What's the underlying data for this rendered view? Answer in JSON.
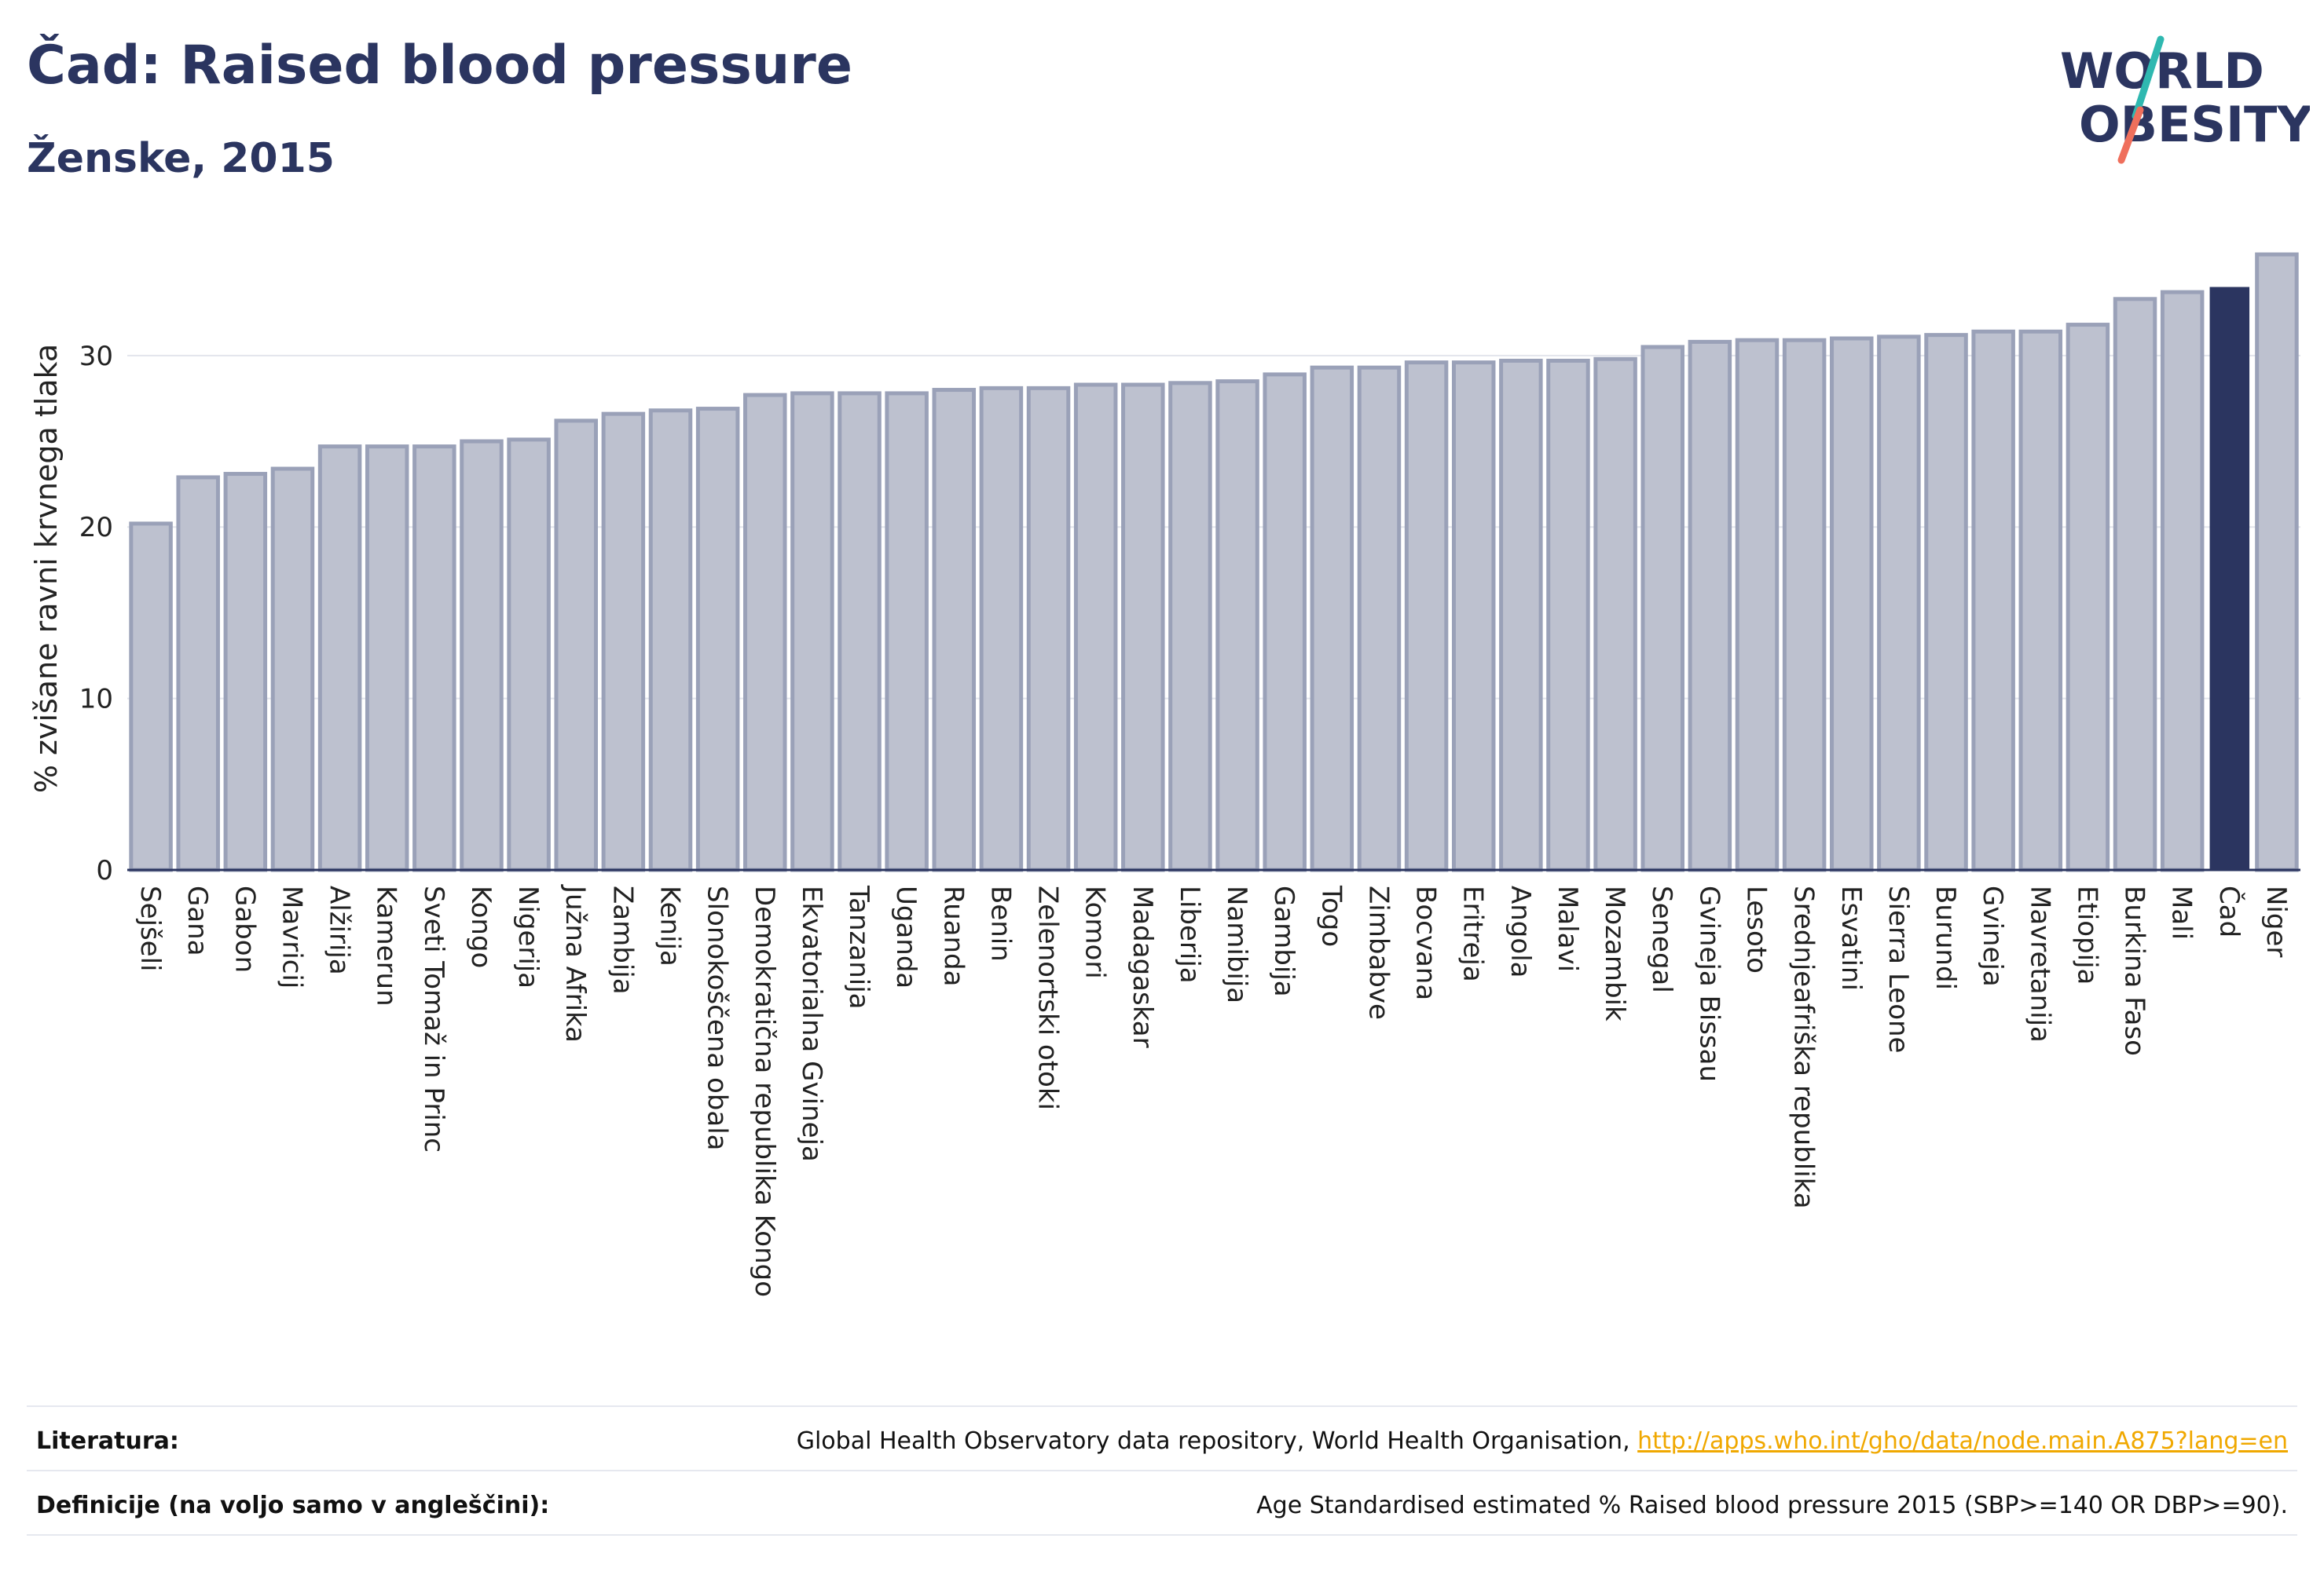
{
  "title": "Čad: Raised blood pressure",
  "subtitle": "Ženske, 2015",
  "logo": {
    "line1": "WORLD",
    "line2": "OBESITY"
  },
  "footer": {
    "literature_label": "Literatura:",
    "literature_text": "Global Health Observatory data repository, World Health Organisation, ",
    "literature_link": "http://apps.who.int/gho/data/node.main.A875?lang=en",
    "definitions_label": "Definicije (na voljo samo v angleščini):",
    "definitions_text": "Age Standardised estimated % Raised blood pressure 2015 (SBP>=140 OR DBP>=90)."
  },
  "colors": {
    "bar": "#bdc1cf",
    "bar_border": "#9aa1b8",
    "highlight": "#2b3560",
    "grid": "#e3e5ec",
    "axis": "#2b3560"
  },
  "chart_data": {
    "type": "bar",
    "title": "Čad: Raised blood pressure",
    "subtitle": "Ženske, 2015",
    "ylabel": "% zvišane ravni krvnega tlaka",
    "xlabel": "",
    "ylim": [
      0,
      37
    ],
    "yticks": [
      0,
      10,
      20,
      30
    ],
    "grid": true,
    "highlight": "Čad",
    "categories": [
      "Sejšeli",
      "Gana",
      "Gabon",
      "Mavricij",
      "Alžirija",
      "Kamerun",
      "Sveti Tomaž in Princ",
      "Kongo",
      "Nigerija",
      "Južna Afrika",
      "Zambija",
      "Kenija",
      "Slonokoščena obala",
      "Demokratična republika Kongo",
      "Ekvatorialna Gvineja",
      "Tanzanija",
      "Uganda",
      "Ruanda",
      "Benin",
      "Zelenortski otoki",
      "Komori",
      "Madagaskar",
      "Liberija",
      "Namibija",
      "Gambija",
      "Togo",
      "Zimbabve",
      "Bocvana",
      "Eritreja",
      "Angola",
      "Malavi",
      "Mozambik",
      "Senegal",
      "Gvineja Bissau",
      "Lesoto",
      "Srednjeafriška republika",
      "Esvatini",
      "Sierra Leone",
      "Burundi",
      "Gvineja",
      "Mavretanija",
      "Etiopija",
      "Burkina Faso",
      "Mali",
      "Čad",
      "Niger"
    ],
    "values": [
      20.2,
      22.9,
      23.1,
      23.4,
      24.7,
      24.7,
      24.7,
      25.0,
      25.1,
      26.2,
      26.6,
      26.8,
      26.9,
      27.7,
      27.8,
      27.8,
      27.8,
      28.0,
      28.1,
      28.1,
      28.3,
      28.3,
      28.4,
      28.5,
      28.9,
      29.3,
      29.3,
      29.6,
      29.6,
      29.7,
      29.7,
      29.8,
      30.5,
      30.8,
      30.9,
      30.9,
      31.0,
      31.1,
      31.2,
      31.4,
      31.4,
      31.8,
      33.3,
      33.7,
      34.0,
      35.9
    ]
  }
}
